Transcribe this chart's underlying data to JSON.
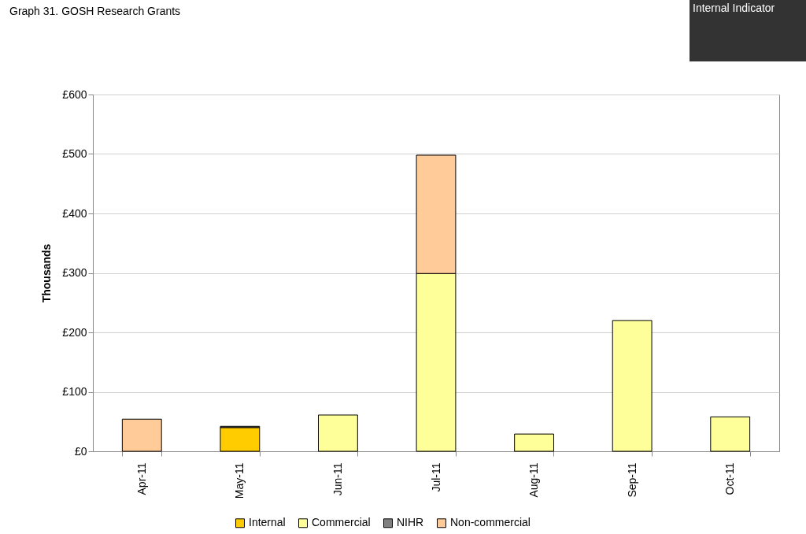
{
  "chart_data": {
    "type": "bar",
    "title": "Graph 31. GOSH Research Grants",
    "ylabel": "Thousands",
    "annotations": [
      "Internal Indicator"
    ],
    "categories": [
      "Apr-11",
      "May-11",
      "Jun-11",
      "Jul-11",
      "Aug-11",
      "Sep-11",
      "Oct-11"
    ],
    "stacked": true,
    "series": [
      {
        "name": "Internal",
        "color": "#ffcc00",
        "values": [
          null,
          40,
          null,
          null,
          null,
          null,
          null
        ]
      },
      {
        "name": "Commercial",
        "color": "#ffff99",
        "values": [
          null,
          null,
          61,
          299,
          29,
          220,
          58
        ]
      },
      {
        "name": "NIHR",
        "color": "#808080",
        "values": [
          null,
          2,
          null,
          null,
          null,
          null,
          null
        ]
      },
      {
        "name": "Non-commercial",
        "color": "#ffcc99",
        "values": [
          54,
          null,
          null,
          199,
          null,
          null,
          null
        ]
      }
    ],
    "ylim": [
      0,
      600
    ],
    "yticks": [
      {
        "value": 0,
        "label": "£0"
      },
      {
        "value": 100,
        "label": "£100"
      },
      {
        "value": 200,
        "label": "£200"
      },
      {
        "value": 300,
        "label": "£300"
      },
      {
        "value": 400,
        "label": "£400"
      },
      {
        "value": 500,
        "label": "£500"
      },
      {
        "value": 600,
        "label": "£600"
      }
    ],
    "grid": "y",
    "legend": "bottom"
  }
}
